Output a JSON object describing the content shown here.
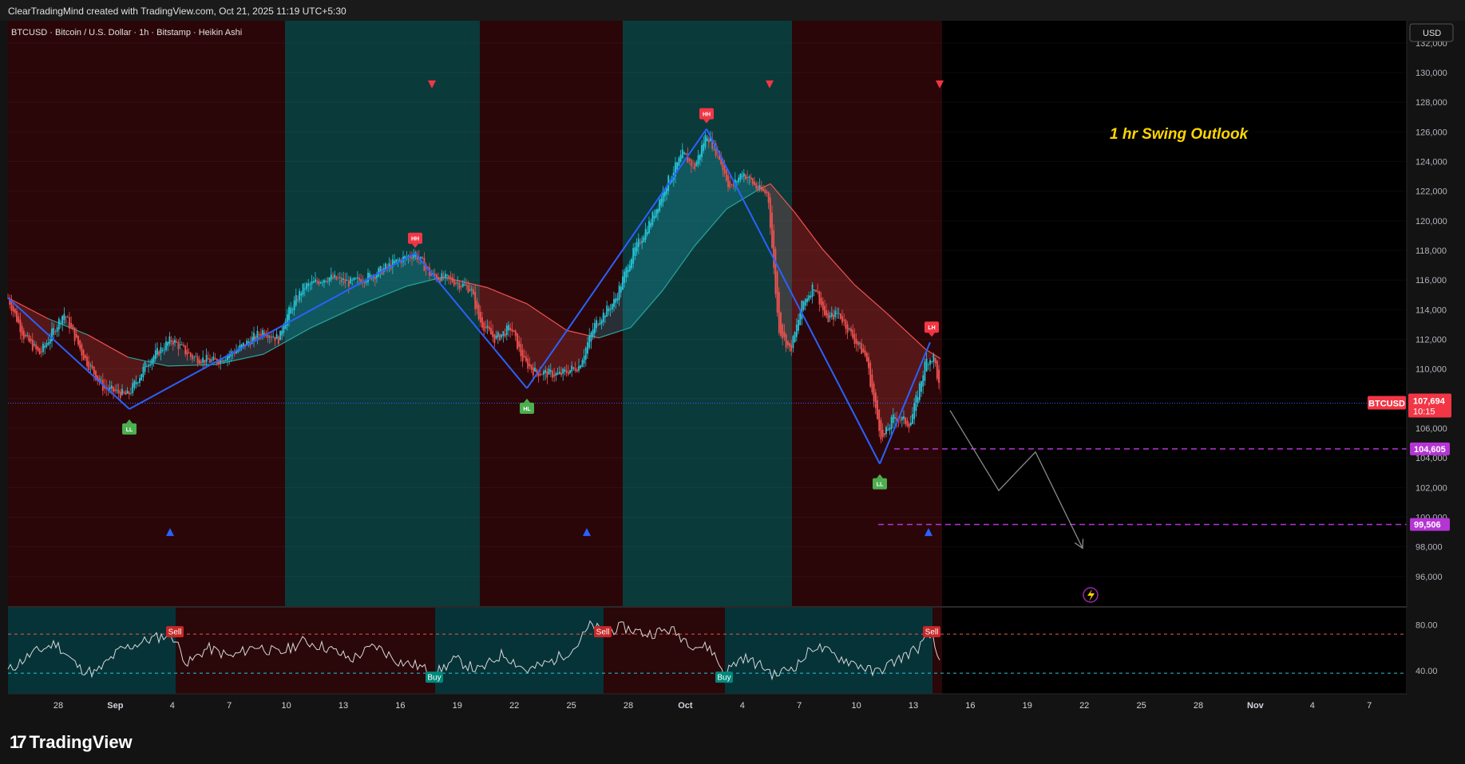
{
  "header": {
    "attribution": "ClearTradingMind created with TradingView.com, Oct 21, 2025 11:19 UTC+5:30"
  },
  "chart_data": {
    "type": "candlestick",
    "title": "BTCUSD · Bitcoin / U.S. Dollar · 1h · Bitstamp · Heikin Ashi",
    "annotation": "1 hr Swing Outlook",
    "currency": "USD",
    "x_ticks": [
      "28",
      "Sep",
      "4",
      "7",
      "10",
      "13",
      "16",
      "19",
      "22",
      "25",
      "28",
      "Oct",
      "4",
      "7",
      "10",
      "13",
      "16",
      "19",
      "22",
      "25",
      "28",
      "Nov",
      "4",
      "7"
    ],
    "y_ticks": [
      96000,
      98000,
      100000,
      102000,
      104000,
      106000,
      108000,
      110000,
      112000,
      114000,
      116000,
      118000,
      120000,
      122000,
      124000,
      126000,
      128000,
      130000,
      132000
    ],
    "y_tick_labels": [
      "96,000",
      "98,000",
      "100,000",
      "102,000",
      "104,000",
      "106,000",
      "108,000",
      "110,000",
      "112,000",
      "114,000",
      "116,000",
      "118,000",
      "120,000",
      "122,000",
      "124,000",
      "126,000",
      "128,000",
      "130,000",
      "132,000"
    ],
    "ylim": [
      94000,
      133500
    ],
    "price_path": [
      [
        0,
        114800
      ],
      [
        20,
        112200
      ],
      [
        40,
        111000
      ],
      [
        70,
        113800
      ],
      [
        95,
        110800
      ],
      [
        120,
        108700
      ],
      [
        150,
        108200
      ],
      [
        175,
        110500
      ],
      [
        205,
        112000
      ],
      [
        230,
        110800
      ],
      [
        260,
        110500
      ],
      [
        290,
        111400
      ],
      [
        320,
        112600
      ],
      [
        340,
        112000
      ],
      [
        345,
        113200
      ],
      [
        370,
        115500
      ],
      [
        400,
        116200
      ],
      [
        430,
        115800
      ],
      [
        460,
        116400
      ],
      [
        485,
        117200
      ],
      [
        510,
        117800
      ],
      [
        530,
        116300
      ],
      [
        555,
        116000
      ],
      [
        580,
        115400
      ],
      [
        590,
        113300
      ],
      [
        610,
        112000
      ],
      [
        630,
        112800
      ],
      [
        645,
        110600
      ],
      [
        660,
        109800
      ],
      [
        690,
        109600
      ],
      [
        715,
        110200
      ],
      [
        735,
        113000
      ],
      [
        760,
        114600
      ],
      [
        780,
        117500
      ],
      [
        805,
        120000
      ],
      [
        825,
        122500
      ],
      [
        845,
        124500
      ],
      [
        860,
        123600
      ],
      [
        875,
        125900
      ],
      [
        890,
        124400
      ],
      [
        905,
        122100
      ],
      [
        920,
        123300
      ],
      [
        940,
        122100
      ],
      [
        952,
        121800
      ],
      [
        958,
        117500
      ],
      [
        965,
        112800
      ],
      [
        980,
        111200
      ],
      [
        995,
        114400
      ],
      [
        1010,
        115700
      ],
      [
        1025,
        113300
      ],
      [
        1040,
        113800
      ],
      [
        1060,
        112000
      ],
      [
        1075,
        110800
      ],
      [
        1085,
        107600
      ],
      [
        1095,
        105200
      ],
      [
        1110,
        106800
      ],
      [
        1130,
        106300
      ],
      [
        1150,
        110600
      ],
      [
        1160,
        110800
      ],
      [
        1168,
        108200
      ]
    ],
    "ma_path": [
      [
        0,
        114800
      ],
      [
        50,
        113400
      ],
      [
        100,
        112300
      ],
      [
        150,
        110800
      ],
      [
        200,
        110200
      ],
      [
        260,
        110300
      ],
      [
        320,
        111000
      ],
      [
        380,
        112800
      ],
      [
        440,
        114300
      ],
      [
        500,
        115600
      ],
      [
        545,
        116200
      ],
      [
        600,
        115500
      ],
      [
        650,
        114400
      ],
      [
        700,
        112600
      ],
      [
        740,
        112100
      ],
      [
        780,
        112800
      ],
      [
        820,
        115300
      ],
      [
        860,
        118300
      ],
      [
        900,
        120800
      ],
      [
        940,
        122100
      ],
      [
        955,
        122500
      ],
      [
        985,
        120600
      ],
      [
        1020,
        118100
      ],
      [
        1060,
        115700
      ],
      [
        1100,
        113800
      ],
      [
        1130,
        112300
      ],
      [
        1150,
        111300
      ],
      [
        1168,
        110700
      ]
    ],
    "zigzag": [
      [
        0,
        114800
      ],
      [
        152,
        107300
      ],
      [
        510,
        117800
      ],
      [
        650,
        108700
      ],
      [
        875,
        126200
      ],
      [
        1092,
        103600
      ],
      [
        1155,
        111800
      ]
    ],
    "regimes": [
      {
        "x0": 0,
        "x1": 347,
        "trend": "bearish"
      },
      {
        "x0": 347,
        "x1": 591,
        "trend": "bullish"
      },
      {
        "x0": 591,
        "x1": 770,
        "trend": "bearish"
      },
      {
        "x0": 770,
        "x1": 982,
        "trend": "bullish"
      },
      {
        "x0": 982,
        "x1": 1170,
        "trend": "bearish"
      }
    ],
    "swing_labels": [
      {
        "label": "LL",
        "x": 152,
        "price": 107300,
        "side": "below"
      },
      {
        "label": "HH",
        "x": 510,
        "price": 117800,
        "side": "above"
      },
      {
        "label": "HL",
        "x": 650,
        "price": 108700,
        "side": "below"
      },
      {
        "label": "HH",
        "x": 875,
        "price": 126200,
        "side": "above"
      },
      {
        "label": "LL",
        "x": 1092,
        "price": 103600,
        "side": "below"
      },
      {
        "label": "LH",
        "x": 1157,
        "price": 111800,
        "side": "above"
      }
    ],
    "triangle_markers": [
      {
        "x": 531,
        "price": 129200,
        "dir": "down",
        "color": "#f23645"
      },
      {
        "x": 954,
        "price": 129200,
        "dir": "down",
        "color": "#f23645"
      },
      {
        "x": 1167,
        "price": 129200,
        "dir": "down",
        "color": "#f23645"
      },
      {
        "x": 203,
        "price": 99000,
        "dir": "up",
        "color": "#2962ff"
      },
      {
        "x": 725,
        "price": 99000,
        "dir": "up",
        "color": "#2962ff"
      },
      {
        "x": 1153,
        "price": 99000,
        "dir": "up",
        "color": "#2962ff"
      }
    ],
    "projection_path": [
      [
        1180,
        107200
      ],
      [
        1241,
        101800
      ],
      [
        1287,
        104400
      ],
      [
        1346,
        97900
      ]
    ],
    "levels": [
      {
        "price": 104605,
        "label": "104,605",
        "color": "#b534d4",
        "x0": 1110
      },
      {
        "price": 99506,
        "label": "99,506",
        "color": "#b534d4",
        "x0": 1090
      }
    ],
    "last_price": {
      "symbol": "BTCUSD",
      "value": 107694,
      "label": "107,694",
      "countdown": "10:15",
      "color": "#f23645"
    },
    "oscillator": {
      "levels": [
        {
          "value": 80,
          "label": "80.00"
        },
        {
          "value": 40,
          "label": "40.00"
        }
      ],
      "ob_line": 72,
      "os_line": 38,
      "signals": [
        {
          "label": "Sell",
          "x": 209,
          "value": 72,
          "color": "#c62828"
        },
        {
          "label": "Buy",
          "x": 534,
          "value": 38,
          "color": "#00897b"
        },
        {
          "label": "Sell",
          "x": 745,
          "value": 72,
          "color": "#c62828"
        },
        {
          "label": "Buy",
          "x": 897,
          "value": 38,
          "color": "#00897b"
        },
        {
          "label": "Sell",
          "x": 1157,
          "value": 72,
          "color": "#c62828"
        }
      ],
      "path": [
        [
          0,
          40
        ],
        [
          30,
          55
        ],
        [
          60,
          64
        ],
        [
          90,
          42
        ],
        [
          110,
          38
        ],
        [
          140,
          58
        ],
        [
          180,
          68
        ],
        [
          205,
          72
        ],
        [
          225,
          46
        ],
        [
          250,
          60
        ],
        [
          280,
          52
        ],
        [
          310,
          62
        ],
        [
          340,
          55
        ],
        [
          370,
          66
        ],
        [
          400,
          60
        ],
        [
          430,
          50
        ],
        [
          460,
          62
        ],
        [
          490,
          48
        ],
        [
          515,
          44
        ],
        [
          534,
          37
        ],
        [
          560,
          50
        ],
        [
          590,
          40
        ],
        [
          620,
          55
        ],
        [
          650,
          40
        ],
        [
          680,
          48
        ],
        [
          710,
          60
        ],
        [
          730,
          80
        ],
        [
          745,
          74
        ],
        [
          770,
          78
        ],
        [
          800,
          72
        ],
        [
          830,
          76
        ],
        [
          860,
          62
        ],
        [
          880,
          60
        ],
        [
          897,
          38
        ],
        [
          920,
          52
        ],
        [
          950,
          42
        ],
        [
          960,
          36
        ],
        [
          990,
          46
        ],
        [
          1010,
          62
        ],
        [
          1040,
          52
        ],
        [
          1070,
          44
        ],
        [
          1085,
          38
        ],
        [
          1110,
          48
        ],
        [
          1140,
          60
        ],
        [
          1157,
          72
        ],
        [
          1165,
          50
        ]
      ],
      "regimes": [
        {
          "x0": 0,
          "x1": 210,
          "trend": "bullish"
        },
        {
          "x0": 210,
          "x1": 535,
          "trend": "bearish"
        },
        {
          "x0": 535,
          "x1": 746,
          "trend": "bullish"
        },
        {
          "x0": 746,
          "x1": 898,
          "trend": "bearish"
        },
        {
          "x0": 898,
          "x1": 1158,
          "trend": "bullish"
        },
        {
          "x0": 1158,
          "x1": 1170,
          "trend": "bearish"
        }
      ]
    }
  },
  "footer": {
    "brand": "TradingView"
  },
  "colors": {
    "bull_fill": "#0b3a3b",
    "bear_fill": "#2b0608",
    "up": "#26c6da",
    "down": "#ef5350",
    "zigzag": "#2962ff",
    "ma_bear": "#ef5350",
    "ma_bull": "#26a69a"
  }
}
